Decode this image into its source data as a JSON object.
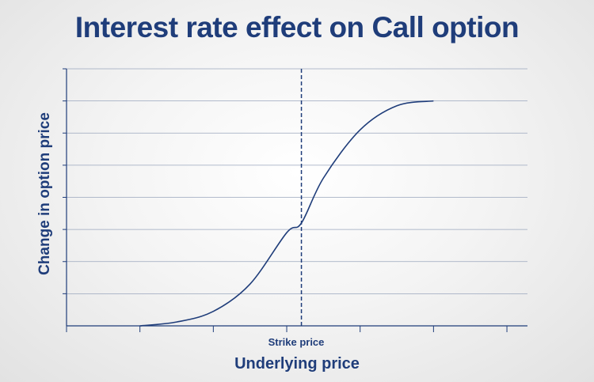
{
  "colors": {
    "primary": "#1f3d7a",
    "grid": "#9aa6bd"
  },
  "chart_data": {
    "type": "line",
    "title": "Interest rate effect on Call option",
    "xlabel": "Underlying price",
    "ylabel": "Change in option price",
    "x_annotation": {
      "label": "Strike price",
      "x": 3.2,
      "style": "dashed"
    },
    "xlim": [
      0,
      6
    ],
    "ylim": [
      0,
      8
    ],
    "grid": true,
    "series": [
      {
        "x": [
          1,
          1.5,
          2,
          2.5,
          3,
          3.2,
          3.5,
          4,
          4.5,
          5
        ],
        "y": [
          0,
          0.12,
          0.45,
          1.3,
          2.9,
          3.2,
          4.6,
          6.1,
          6.85,
          7
        ]
      }
    ]
  }
}
